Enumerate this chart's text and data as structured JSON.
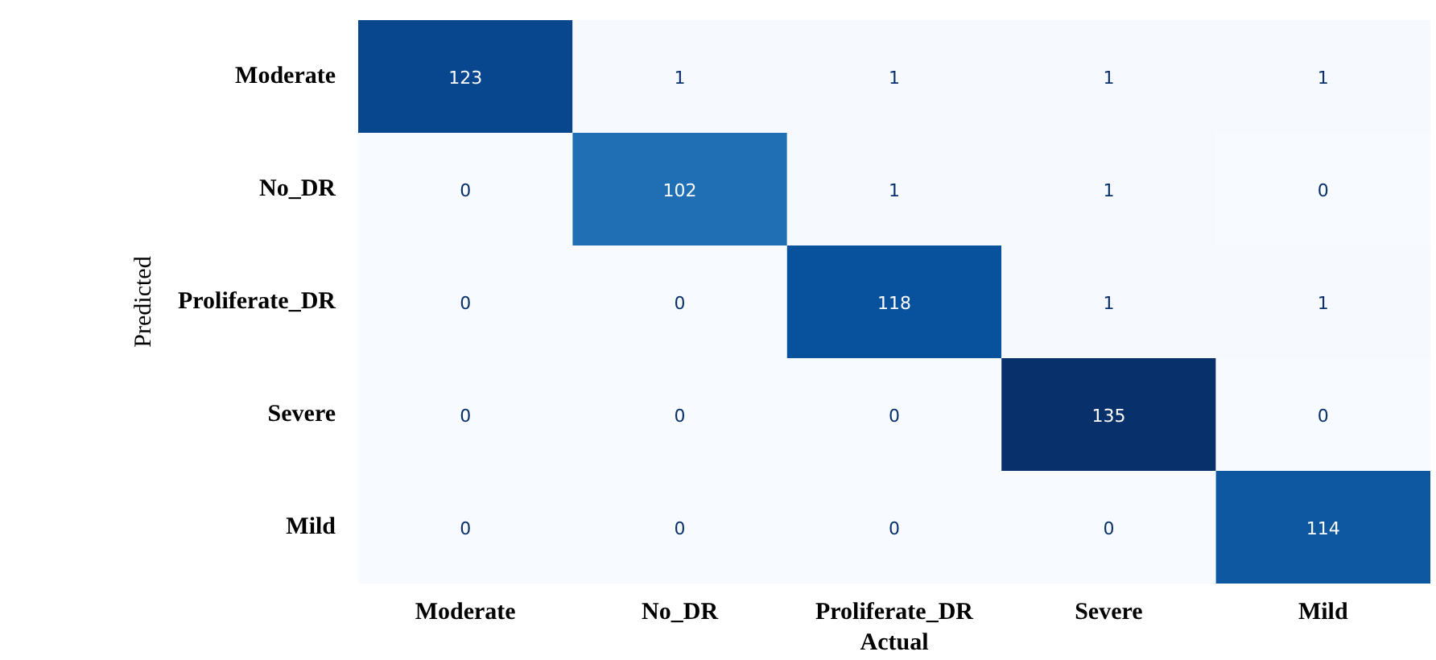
{
  "chart_data": {
    "type": "heatmap",
    "xlabel": "Actual",
    "ylabel": "Predicted",
    "categories": [
      "Moderate",
      "No_DR",
      "Proliferate_DR",
      "Severe",
      "Mild"
    ],
    "y_categories": [
      "Moderate",
      "No_DR",
      "Proliferate_DR",
      "Severe",
      "Mild"
    ],
    "cells": [
      [
        123,
        1,
        1,
        1,
        1
      ],
      [
        0,
        102,
        1,
        1,
        0
      ],
      [
        0,
        0,
        118,
        1,
        1
      ],
      [
        0,
        0,
        0,
        135,
        0
      ],
      [
        0,
        0,
        0,
        0,
        114
      ]
    ],
    "data_labels": true
  }
}
